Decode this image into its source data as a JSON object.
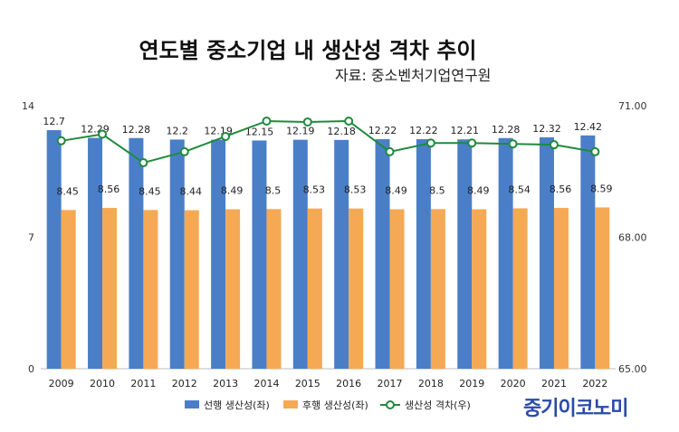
{
  "chart_data": {
    "type": "bar",
    "title": "연도별 중소기업 내 생산성 격차 추이",
    "source": "자료: 중소벤처기업연구원",
    "categories": [
      "2009",
      "2010",
      "2011",
      "2012",
      "2013",
      "2014",
      "2015",
      "2016",
      "2017",
      "2018",
      "2019",
      "2020",
      "2021",
      "2022"
    ],
    "series": [
      {
        "name": "선행 생산성(좌)",
        "type": "bar",
        "axis": "left",
        "color": "#4a7fc8",
        "values": [
          12.7,
          12.29,
          12.28,
          12.2,
          12.19,
          12.15,
          12.19,
          12.18,
          12.22,
          12.22,
          12.21,
          12.28,
          12.32,
          12.42
        ]
      },
      {
        "name": "후행 생산성(좌)",
        "type": "bar",
        "axis": "left",
        "color": "#f5a955",
        "values": [
          8.45,
          8.56,
          8.45,
          8.44,
          8.49,
          8.5,
          8.53,
          8.53,
          8.49,
          8.5,
          8.49,
          8.54,
          8.56,
          8.59
        ]
      },
      {
        "name": "생산성 격차(우)",
        "type": "line",
        "axis": "right",
        "color": "#1f8a3c",
        "values": [
          70.2,
          70.35,
          69.7,
          69.95,
          70.3,
          70.65,
          70.63,
          70.65,
          69.95,
          70.15,
          70.15,
          70.13,
          70.11,
          69.95
        ]
      }
    ],
    "y_left": {
      "range": [
        0,
        14
      ],
      "ticks": [
        "0",
        "7",
        "14"
      ]
    },
    "y_right": {
      "range": [
        65,
        71
      ],
      "ticks": [
        "65.00",
        "68.00",
        "71.00"
      ]
    },
    "grid": false,
    "legend_position": "bottom"
  },
  "logo_text": "중기이코노미"
}
